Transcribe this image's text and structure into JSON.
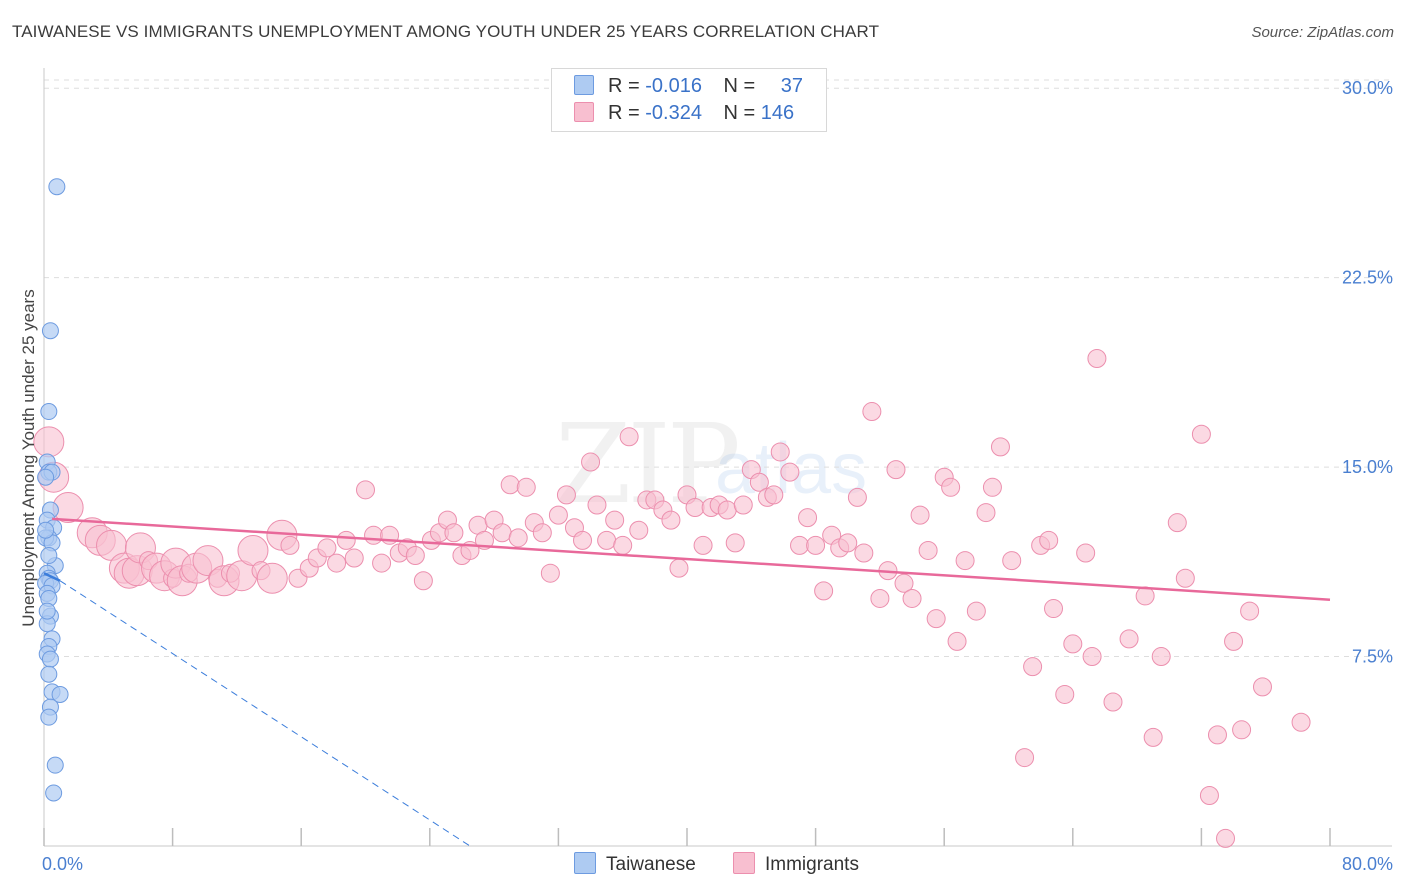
{
  "title": "TAIWANESE VS IMMIGRANTS UNEMPLOYMENT AMONG YOUTH UNDER 25 YEARS CORRELATION CHART",
  "source": "Source: ZipAtlas.com",
  "watermark": {
    "zip": "ZIP",
    "atlas": "atlas"
  },
  "legend": {
    "rows": [
      {
        "r_label": "R =",
        "r_value": "-0.016",
        "n_label": "N =",
        "n_value": "37"
      },
      {
        "r_label": "R =",
        "r_value": "-0.324",
        "n_label": "N =",
        "n_value": "146"
      }
    ]
  },
  "bottom_legend": {
    "taiwanese": "Taiwanese",
    "immigrants": "Immigrants"
  },
  "colors": {
    "taiwanese_fill": "#aecbf2",
    "taiwanese_stroke": "#6d9be0",
    "taiwanese_line": "#3b7ddb",
    "immigrants_fill": "#f8bfd0",
    "immigrants_stroke": "#ec8fae",
    "immigrants_line": "#e8699a",
    "grid": "#dddddd",
    "tick": "#4a7fd0"
  },
  "chart_data": {
    "type": "scatter",
    "title": "TAIWANESE VS IMMIGRANTS UNEMPLOYMENT AMONG YOUTH UNDER 25 YEARS CORRELATION CHART",
    "xlabel": "",
    "ylabel": "Unemployment Among Youth under 25 years",
    "xlim": [
      0,
      80
    ],
    "ylim": [
      0,
      30.8
    ],
    "x_tick_labels": [
      "0.0%",
      "80.0%"
    ],
    "y_ticks": [
      7.5,
      15.0,
      22.5,
      30.0
    ],
    "y_tick_labels": [
      "7.5%",
      "15.0%",
      "22.5%",
      "30.0%"
    ],
    "series": [
      {
        "name": "Taiwanese",
        "r": -0.016,
        "n": 37,
        "trend": {
          "x1": 0,
          "y1": 10.8,
          "x2": 1,
          "y2": 10.5,
          "dashed_to": [
            26.5,
            0
          ]
        },
        "points": [
          [
            0.8,
            26.1
          ],
          [
            0.4,
            20.4
          ],
          [
            0.3,
            17.2
          ],
          [
            0.2,
            15.2
          ],
          [
            0.3,
            14.8
          ],
          [
            0.5,
            14.8
          ],
          [
            0.1,
            14.6
          ],
          [
            0.4,
            13.3
          ],
          [
            0.2,
            12.9
          ],
          [
            0.6,
            12.6
          ],
          [
            0.3,
            12.2
          ],
          [
            0.1,
            12.2
          ],
          [
            0.5,
            12.0
          ],
          [
            0.7,
            11.1
          ],
          [
            0.2,
            10.8
          ],
          [
            0.3,
            10.6
          ],
          [
            0.4,
            10.5
          ],
          [
            0.1,
            10.4
          ],
          [
            0.5,
            10.3
          ],
          [
            0.2,
            10.0
          ],
          [
            0.3,
            9.8
          ],
          [
            0.4,
            9.1
          ],
          [
            0.2,
            8.8
          ],
          [
            0.5,
            8.2
          ],
          [
            0.3,
            7.9
          ],
          [
            0.2,
            7.6
          ],
          [
            0.4,
            7.4
          ],
          [
            0.3,
            6.8
          ],
          [
            0.5,
            6.1
          ],
          [
            1.0,
            6.0
          ],
          [
            0.4,
            5.5
          ],
          [
            0.3,
            5.1
          ],
          [
            0.7,
            3.2
          ],
          [
            0.6,
            2.1
          ],
          [
            0.1,
            12.5
          ],
          [
            0.3,
            11.5
          ],
          [
            0.2,
            9.3
          ]
        ]
      },
      {
        "name": "Immigrants",
        "r": -0.324,
        "n": 146,
        "trend": {
          "x1": 0.5,
          "y1": 12.95,
          "x2": 80,
          "y2": 9.75
        },
        "points": [
          [
            0.3,
            16.0,
            2
          ],
          [
            0.6,
            14.6,
            2
          ],
          [
            1.5,
            13.4,
            2
          ],
          [
            3.0,
            12.4,
            2
          ],
          [
            3.5,
            12.1,
            2
          ],
          [
            4.2,
            11.9,
            2
          ],
          [
            5.0,
            11.0,
            2
          ],
          [
            5.3,
            10.8,
            2
          ],
          [
            5.8,
            10.9,
            2
          ],
          [
            6.0,
            11.8,
            2
          ],
          [
            6.5,
            11.3,
            1
          ],
          [
            7.0,
            11.0,
            2
          ],
          [
            7.5,
            10.7,
            2
          ],
          [
            8.0,
            10.6,
            1
          ],
          [
            8.2,
            11.2,
            2
          ],
          [
            8.6,
            10.5,
            2
          ],
          [
            9.0,
            10.8,
            1
          ],
          [
            9.5,
            11.0,
            2
          ],
          [
            10.2,
            11.3,
            2
          ],
          [
            10.8,
            10.6,
            1
          ],
          [
            11.2,
            10.5,
            2
          ],
          [
            11.6,
            10.8,
            1
          ],
          [
            12.3,
            10.7,
            2
          ],
          [
            13.0,
            11.7,
            2
          ],
          [
            13.5,
            10.9,
            1
          ],
          [
            14.2,
            10.6,
            2
          ],
          [
            14.8,
            12.3,
            2
          ],
          [
            15.3,
            11.9,
            1
          ],
          [
            15.8,
            10.6,
            1
          ],
          [
            16.5,
            11.0,
            1
          ],
          [
            17.0,
            11.4,
            1
          ],
          [
            17.6,
            11.8,
            1
          ],
          [
            18.2,
            11.2,
            1
          ],
          [
            18.8,
            12.1,
            1
          ],
          [
            19.3,
            11.4,
            1
          ],
          [
            20.0,
            14.1,
            1
          ],
          [
            20.5,
            12.3,
            1
          ],
          [
            21.0,
            11.2,
            1
          ],
          [
            21.5,
            12.3,
            1
          ],
          [
            22.1,
            11.6,
            1
          ],
          [
            22.6,
            11.8,
            1
          ],
          [
            23.1,
            11.5,
            1
          ],
          [
            23.6,
            10.5,
            1
          ],
          [
            24.1,
            12.1,
            1
          ],
          [
            24.6,
            12.4,
            1
          ],
          [
            25.1,
            12.9,
            1
          ],
          [
            25.5,
            12.4,
            1
          ],
          [
            26.0,
            11.5,
            1
          ],
          [
            26.5,
            11.7,
            1
          ],
          [
            27.0,
            12.7,
            1
          ],
          [
            27.4,
            12.1,
            1
          ],
          [
            28.0,
            12.9,
            1
          ],
          [
            28.5,
            12.4,
            1
          ],
          [
            29.0,
            14.3,
            1
          ],
          [
            29.5,
            12.2,
            1
          ],
          [
            30.0,
            14.2,
            1
          ],
          [
            30.5,
            12.8,
            1
          ],
          [
            31.0,
            12.4,
            1
          ],
          [
            31.5,
            10.8,
            1
          ],
          [
            32.0,
            13.1,
            1
          ],
          [
            32.5,
            13.9,
            1
          ],
          [
            33.0,
            12.6,
            1
          ],
          [
            33.5,
            12.1,
            1
          ],
          [
            34.0,
            15.2,
            1
          ],
          [
            34.4,
            13.5,
            1
          ],
          [
            35.0,
            12.1,
            1
          ],
          [
            35.5,
            12.9,
            1
          ],
          [
            36.0,
            11.9,
            1
          ],
          [
            36.4,
            16.2,
            1
          ],
          [
            37.0,
            12.5,
            1
          ],
          [
            37.5,
            13.7,
            1
          ],
          [
            38.0,
            13.7,
            1
          ],
          [
            38.5,
            13.3,
            1
          ],
          [
            39.0,
            12.9,
            1
          ],
          [
            39.5,
            11.0,
            1
          ],
          [
            40.0,
            13.9,
            1
          ],
          [
            40.5,
            13.4,
            1
          ],
          [
            41.0,
            11.9,
            1
          ],
          [
            41.5,
            13.4,
            1
          ],
          [
            42.0,
            13.5,
            1
          ],
          [
            42.5,
            13.3,
            1
          ],
          [
            43.0,
            12.0,
            1
          ],
          [
            43.5,
            13.5,
            1
          ],
          [
            44.0,
            14.9,
            1
          ],
          [
            44.5,
            14.4,
            1
          ],
          [
            45.0,
            13.8,
            1
          ],
          [
            45.4,
            13.9,
            1
          ],
          [
            45.8,
            15.6,
            1
          ],
          [
            46.4,
            14.8,
            1
          ],
          [
            47.0,
            11.9,
            1
          ],
          [
            47.5,
            13.0,
            1
          ],
          [
            48.0,
            11.9,
            1
          ],
          [
            48.5,
            10.1,
            1
          ],
          [
            49.0,
            12.3,
            1
          ],
          [
            49.5,
            11.8,
            1
          ],
          [
            50.0,
            12.0,
            1
          ],
          [
            50.6,
            13.8,
            1
          ],
          [
            51.0,
            11.6,
            1
          ],
          [
            51.5,
            17.2,
            1
          ],
          [
            52.0,
            9.8,
            1
          ],
          [
            52.5,
            10.9,
            1
          ],
          [
            53.0,
            14.9,
            1
          ],
          [
            53.5,
            10.4,
            1
          ],
          [
            54.0,
            9.8,
            1
          ],
          [
            54.5,
            13.1,
            1
          ],
          [
            55.0,
            11.7,
            1
          ],
          [
            55.5,
            9.0,
            1
          ],
          [
            56.0,
            14.6,
            1
          ],
          [
            56.4,
            14.2,
            1
          ],
          [
            56.8,
            8.1,
            1
          ],
          [
            57.3,
            11.3,
            1
          ],
          [
            58.0,
            9.3,
            1
          ],
          [
            58.6,
            13.2,
            1
          ],
          [
            59.0,
            14.2,
            1
          ],
          [
            59.5,
            15.8,
            1
          ],
          [
            60.2,
            11.3,
            1
          ],
          [
            61.0,
            3.5,
            1
          ],
          [
            61.5,
            7.1,
            1
          ],
          [
            62.0,
            11.9,
            1
          ],
          [
            62.5,
            12.1,
            1
          ],
          [
            62.8,
            9.4,
            1
          ],
          [
            63.5,
            6.0,
            1
          ],
          [
            64.0,
            8.0,
            1
          ],
          [
            64.8,
            11.6,
            1
          ],
          [
            65.2,
            7.5,
            1
          ],
          [
            65.5,
            19.3,
            1
          ],
          [
            66.5,
            5.7,
            1
          ],
          [
            67.5,
            8.2,
            1
          ],
          [
            68.5,
            9.9,
            1
          ],
          [
            69.0,
            4.3,
            1
          ],
          [
            69.5,
            7.5,
            1
          ],
          [
            70.5,
            12.8,
            1
          ],
          [
            71.0,
            10.6,
            1
          ],
          [
            72.0,
            16.3,
            1
          ],
          [
            72.5,
            2.0,
            1
          ],
          [
            73.0,
            4.4,
            1
          ],
          [
            73.5,
            0.3,
            1
          ],
          [
            74.0,
            8.1,
            1
          ],
          [
            74.5,
            4.6,
            1
          ],
          [
            75.0,
            9.3,
            1
          ],
          [
            75.8,
            6.3,
            1
          ],
          [
            78.2,
            4.9,
            1
          ]
        ]
      }
    ]
  },
  "y_axis_label": "Unemployment Among Youth under 25 years"
}
